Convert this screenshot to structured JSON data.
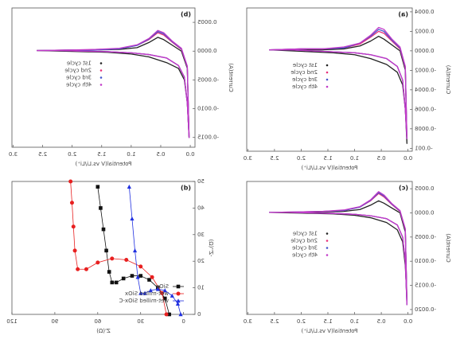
{
  "chart_data": [
    {
      "type": "line",
      "label": "(a)",
      "x_label": "Potential(V vs.Li/Li⁺)",
      "y_label": "Current(A)",
      "xlim": [
        -0.08,
        3.02
      ],
      "ylim": [
        -0.00103,
        0.00044
      ],
      "xticks": [
        {
          "value": 0,
          "label": "0.0"
        },
        0.5,
        {
          "value": 1,
          "label": "1.0"
        },
        1.5,
        {
          "value": 2,
          "label": "2.0"
        },
        2.5,
        {
          "value": 3,
          "label": "3.0"
        }
      ],
      "yticks": [
        -0.001,
        {
          "value": -0.0008,
          "label": "-0.0008"
        },
        {
          "value": -0.0006,
          "label": "-0.0006"
        },
        {
          "value": -0.0004,
          "label": "-0.0004"
        },
        {
          "value": -0.0002,
          "label": "-0.0002"
        },
        {
          "value": 0,
          "label": "0.0000"
        },
        0.0002,
        0.0004
      ],
      "legend": "center",
      "x": [
        2.6,
        2.2,
        1.8,
        1.4,
        1.0,
        0.7,
        0.4,
        0.2,
        0.1,
        0.05,
        0.02,
        0.05,
        0.15,
        0.3,
        0.45,
        0.55,
        0.7,
        0.9,
        1.2,
        1.6,
        2.0,
        2.6
      ],
      "series": [
        {
          "name": "1st cycle",
          "color": "#222222",
          "values": [
            1e-05,
            0,
            -1e-05,
            -2e-05,
            -4e-05,
            -8e-05,
            -0.00014,
            -0.00022,
            -0.00035,
            -0.0006,
            -0.00095,
            -0.0002,
            0,
            6e-05,
            0.00012,
            0.00015,
            0.0001,
            5e-05,
            2e-05,
            1e-05,
            1e-05,
            1e-05
          ]
        },
        {
          "name": "2nd cycle",
          "color": "#e8307a",
          "values": [
            1e-05,
            1e-05,
            0,
            -1e-05,
            -2e-05,
            -4e-05,
            -8e-05,
            -0.00016,
            -0.0003,
            -0.0006,
            -0.0009,
            -0.00018,
            2e-05,
            0.0001,
            0.00018,
            0.0002,
            0.00014,
            7e-05,
            3e-05,
            2e-05,
            2e-05,
            1e-05
          ]
        },
        {
          "name": "3rd cycle",
          "color": "#4455cc",
          "values": [
            1e-05,
            1e-05,
            0,
            -1e-05,
            -2e-05,
            -4e-05,
            -8e-05,
            -0.00016,
            -0.0003,
            -0.0006,
            -0.0009,
            -0.00017,
            3e-05,
            0.00011,
            0.0002,
            0.00022,
            0.00015,
            8e-05,
            3e-05,
            2e-05,
            2e-05,
            1e-05
          ]
        },
        {
          "name": "4th cycle",
          "color": "#c23ac8",
          "values": [
            1e-05,
            1e-05,
            0,
            -1e-05,
            -2e-05,
            -4e-05,
            -8e-05,
            -0.00016,
            -0.0003,
            -0.0006,
            -0.0009,
            -0.00016,
            4e-05,
            0.00012,
            0.00022,
            0.00024,
            0.00016,
            8e-05,
            4e-05,
            2e-05,
            2e-05,
            1e-05
          ]
        }
      ]
    },
    {
      "type": "line",
      "label": "(b)",
      "x_label": "Potential(V vs.Li/Li⁺)",
      "y_label": "Current(A)",
      "xlim": [
        -0.08,
        3.02
      ],
      "ylim": [
        -0.00167,
        0.00075
      ],
      "xticks": [
        {
          "value": 0,
          "label": "0.0"
        },
        0.5,
        {
          "value": 1,
          "label": "1.0"
        },
        1.5,
        {
          "value": 2,
          "label": "2.0"
        },
        2.5,
        {
          "value": 3,
          "label": "3.0"
        }
      ],
      "yticks": [
        -0.0015,
        {
          "value": -0.001,
          "label": "-0.0010"
        },
        -0.0005,
        {
          "value": 0,
          "label": "0.0000"
        },
        0.0005
      ],
      "legend": "center",
      "x": [
        2.6,
        2.2,
        1.8,
        1.4,
        1.0,
        0.7,
        0.4,
        0.2,
        0.1,
        0.05,
        0.02,
        0.05,
        0.15,
        0.3,
        0.45,
        0.55,
        0.7,
        0.9,
        1.2,
        1.6,
        2.0,
        2.6
      ],
      "series": [
        {
          "name": "1st cycle",
          "color": "#222222",
          "values": [
            1e-05,
            0,
            -1e-05,
            -2e-05,
            -5e-05,
            -0.0001,
            -0.0002,
            -0.0003,
            -0.0005,
            -0.0009,
            -0.0015,
            -0.0003,
            0,
            0.0001,
            0.0002,
            0.00024,
            0.00015,
            6e-05,
            3e-05,
            2e-05,
            1e-05,
            1e-05
          ]
        },
        {
          "name": "2nd cycle",
          "color": "#e8307a",
          "values": [
            1e-05,
            1e-05,
            0,
            -1e-05,
            -3e-05,
            -6e-05,
            -0.00012,
            -0.00025,
            -0.00045,
            -0.0009,
            -0.0015,
            -0.00028,
            3e-05,
            0.00015,
            0.00028,
            0.00032,
            0.0002,
            0.0001,
            4e-05,
            2e-05,
            2e-05,
            1e-05
          ]
        },
        {
          "name": "3rd cycle",
          "color": "#4455cc",
          "values": [
            1e-05,
            1e-05,
            0,
            -1e-05,
            -3e-05,
            -6e-05,
            -0.00012,
            -0.00025,
            -0.00045,
            -0.0009,
            -0.0015,
            -0.00027,
            4e-05,
            0.00016,
            0.0003,
            0.00034,
            0.00021,
            0.0001,
            4e-05,
            2e-05,
            2e-05,
            1e-05
          ]
        },
        {
          "name": "4th cycle",
          "color": "#c23ac8",
          "values": [
            1e-05,
            1e-05,
            0,
            -1e-05,
            -3e-05,
            -6e-05,
            -0.00012,
            -0.00025,
            -0.00045,
            -0.0009,
            -0.0015,
            -0.00026,
            5e-05,
            0.00017,
            0.00032,
            0.00036,
            0.00022,
            0.00011,
            5e-05,
            3e-05,
            2e-05,
            1e-05
          ]
        }
      ]
    },
    {
      "type": "line",
      "label": "(c)",
      "x_label": "Potential(V vs.Li/Li⁺)",
      "y_label": "Current(A)",
      "xlim": [
        -0.08,
        3.02
      ],
      "ylim": [
        -0.0021,
        0.00065
      ],
      "xticks": [
        {
          "value": 0,
          "label": "0.0"
        },
        0.5,
        {
          "value": 1,
          "label": "1.0"
        },
        1.5,
        {
          "value": 2,
          "label": "2.0"
        },
        2.5,
        {
          "value": 3,
          "label": "3.0"
        }
      ],
      "yticks": [
        {
          "value": -0.002,
          "label": "-0.0020"
        },
        -0.0015,
        {
          "value": -0.001,
          "label": "-0.0010"
        },
        -0.0005,
        {
          "value": 0,
          "label": "0.0000"
        },
        0.0005
      ],
      "legend": "center",
      "x": [
        2.6,
        2.2,
        1.8,
        1.4,
        1.0,
        0.7,
        0.4,
        0.2,
        0.1,
        0.05,
        0.02,
        0.05,
        0.15,
        0.3,
        0.45,
        0.55,
        0.7,
        0.9,
        1.2,
        1.6,
        2.0,
        2.6
      ],
      "series": [
        {
          "name": "1st cycle",
          "color": "#222222",
          "values": [
            1e-05,
            0,
            -1e-05,
            -2e-05,
            -5e-05,
            -0.0001,
            -0.0002,
            -0.00035,
            -0.0006,
            -0.0011,
            -0.0018,
            -0.0004,
            0,
            0.0001,
            0.0002,
            0.00025,
            0.00016,
            7e-05,
            3e-05,
            2e-05,
            1e-05,
            1e-05
          ]
        },
        {
          "name": "2nd cycle",
          "color": "#e8307a",
          "values": [
            1e-05,
            1e-05,
            0,
            -1e-05,
            -3e-05,
            -6e-05,
            -0.00012,
            -0.00025,
            -0.0005,
            -0.001,
            -0.0019,
            -0.00035,
            3e-05,
            0.00017,
            0.00033,
            0.0004,
            0.00025,
            0.00012,
            5e-05,
            3e-05,
            2e-05,
            1e-05
          ]
        },
        {
          "name": "3rd cycle",
          "color": "#4455cc",
          "values": [
            1e-05,
            1e-05,
            0,
            -1e-05,
            -3e-05,
            -6e-05,
            -0.00012,
            -0.00025,
            -0.0005,
            -0.001,
            -0.0019,
            -0.00034,
            4e-05,
            0.00018,
            0.00035,
            0.00042,
            0.00026,
            0.00012,
            5e-05,
            3e-05,
            2e-05,
            1e-05
          ]
        },
        {
          "name": "4th cycle",
          "color": "#c23ac8",
          "values": [
            1e-05,
            1e-05,
            0,
            -1e-05,
            -3e-05,
            -6e-05,
            -0.00012,
            -0.00025,
            -0.0005,
            -0.001,
            -0.0019,
            -0.00033,
            5e-05,
            0.00019,
            0.00037,
            0.00044,
            0.00027,
            0.00013,
            6e-05,
            3e-05,
            2e-05,
            1e-05
          ]
        }
      ]
    },
    {
      "type": "scatter",
      "label": "(d)",
      "x_label": "Z'(Ω)",
      "y_label": "-Z''(Ω)",
      "xlim": [
        -8,
        120
      ],
      "ylim": [
        0,
        50
      ],
      "xticks": [
        0,
        30,
        60,
        90,
        120
      ],
      "yticks": [
        0,
        10,
        20,
        30,
        40,
        50
      ],
      "legend": "lower left",
      "series": [
        {
          "name": "SiOx",
          "color": "#111111",
          "marker": "square",
          "x": [
            10,
            13,
            18,
            24,
            30,
            36,
            42,
            47,
            50,
            52,
            54,
            56,
            58,
            60
          ],
          "values": [
            0,
            6,
            10,
            13,
            14.5,
            14.5,
            13.5,
            12,
            12,
            16,
            24,
            32,
            40,
            48
          ]
        },
        {
          "name": "wet-milled SiOx",
          "color": "#e82020",
          "marker": "circle",
          "x": [
            12,
            15,
            22,
            30,
            40,
            50,
            60,
            68,
            74,
            76,
            77,
            78,
            79
          ],
          "values": [
            0,
            8,
            14,
            18,
            20.5,
            21,
            19.5,
            17,
            17,
            24,
            33,
            42,
            50
          ]
        },
        {
          "name": "wet-milled SiOx-C",
          "color": "#2030e0",
          "marker": "triangle",
          "x": [
            2,
            4,
            8,
            13,
            18,
            23,
            27,
            30,
            32,
            34,
            36,
            38
          ],
          "values": [
            0,
            4,
            7,
            9,
            9.5,
            9,
            8,
            8,
            14,
            24,
            36,
            48
          ]
        }
      ]
    }
  ]
}
